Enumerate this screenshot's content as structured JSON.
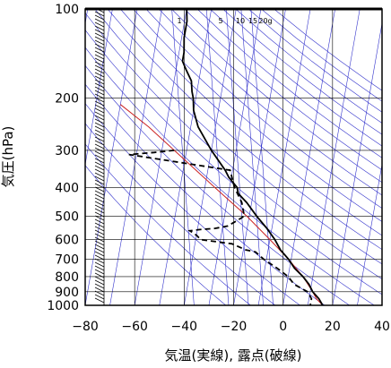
{
  "chart_data": {
    "type": "skew-T log-P diagram",
    "xlabel": "気温(実線), 露点(破線)",
    "ylabel": "気圧(hPa)",
    "xlim": [
      -80,
      40
    ],
    "ylim": [
      1000,
      100
    ],
    "y_scale": "log",
    "grid": true,
    "x_ticks": [
      -80,
      -60,
      -40,
      -20,
      0,
      20,
      40
    ],
    "y_ticks": [
      100,
      200,
      300,
      400,
      500,
      600,
      700,
      800,
      900,
      1000
    ],
    "mixing_ratio_labels": [
      "1",
      "5",
      "10",
      "15",
      "20g"
    ],
    "colors": {
      "temperature": "#000000",
      "dewpoint": "#000000",
      "parcel": "#cc2222",
      "reference_lines": "#3333cc",
      "grid": "#000000"
    },
    "series": [
      {
        "points": [
          [
            100,
            -60
          ],
          [
            110,
            -59
          ],
          [
            125,
            -59
          ],
          [
            140,
            -58
          ],
          [
            150,
            -58
          ],
          [
            160,
            -56
          ],
          [
            175,
            -53
          ],
          [
            190,
            -52
          ],
          [
            200,
            -51
          ],
          [
            220,
            -50
          ],
          [
            250,
            -47
          ],
          [
            300,
            -40
          ],
          [
            350,
            -33
          ],
          [
            370,
            -31
          ],
          [
            400,
            -27
          ],
          [
            420,
            -26
          ],
          [
            450,
            -22
          ],
          [
            500,
            -17
          ],
          [
            550,
            -12
          ],
          [
            600,
            -8
          ],
          [
            650,
            -5
          ],
          [
            700,
            -1
          ],
          [
            750,
            2
          ],
          [
            800,
            6
          ],
          [
            850,
            9
          ],
          [
            900,
            11
          ],
          [
            950,
            14
          ],
          [
            1000,
            16
          ]
        ]
      },
      {
        "points": [
          [
            300,
            -55
          ],
          [
            305,
            -63
          ],
          [
            310,
            -73
          ],
          [
            350,
            -31
          ],
          [
            400,
            -28
          ],
          [
            450,
            -24
          ],
          [
            500,
            -22
          ],
          [
            520,
            -25
          ],
          [
            540,
            -28
          ],
          [
            550,
            -33
          ],
          [
            555,
            -39
          ],
          [
            560,
            -43
          ],
          [
            580,
            -40
          ],
          [
            600,
            -38
          ],
          [
            620,
            -25
          ],
          [
            650,
            -19
          ],
          [
            660,
            -15
          ],
          [
            700,
            -11
          ],
          [
            750,
            -5
          ],
          [
            800,
            0
          ],
          [
            850,
            3
          ],
          [
            900,
            9
          ],
          [
            950,
            11
          ],
          [
            1000,
            11
          ]
        ]
      },
      {
        "points": [
          [
            1000,
            16
          ],
          [
            950,
            13
          ],
          [
            900,
            11
          ],
          [
            800,
            6
          ],
          [
            700,
            -1
          ],
          [
            600,
            -10
          ],
          [
            500,
            -21
          ],
          [
            400,
            -36
          ],
          [
            300,
            -55
          ],
          [
            250,
            -67
          ],
          [
            210,
            -80
          ]
        ]
      }
    ],
    "wind_barbs": "left column, 100–1000 hPa"
  }
}
